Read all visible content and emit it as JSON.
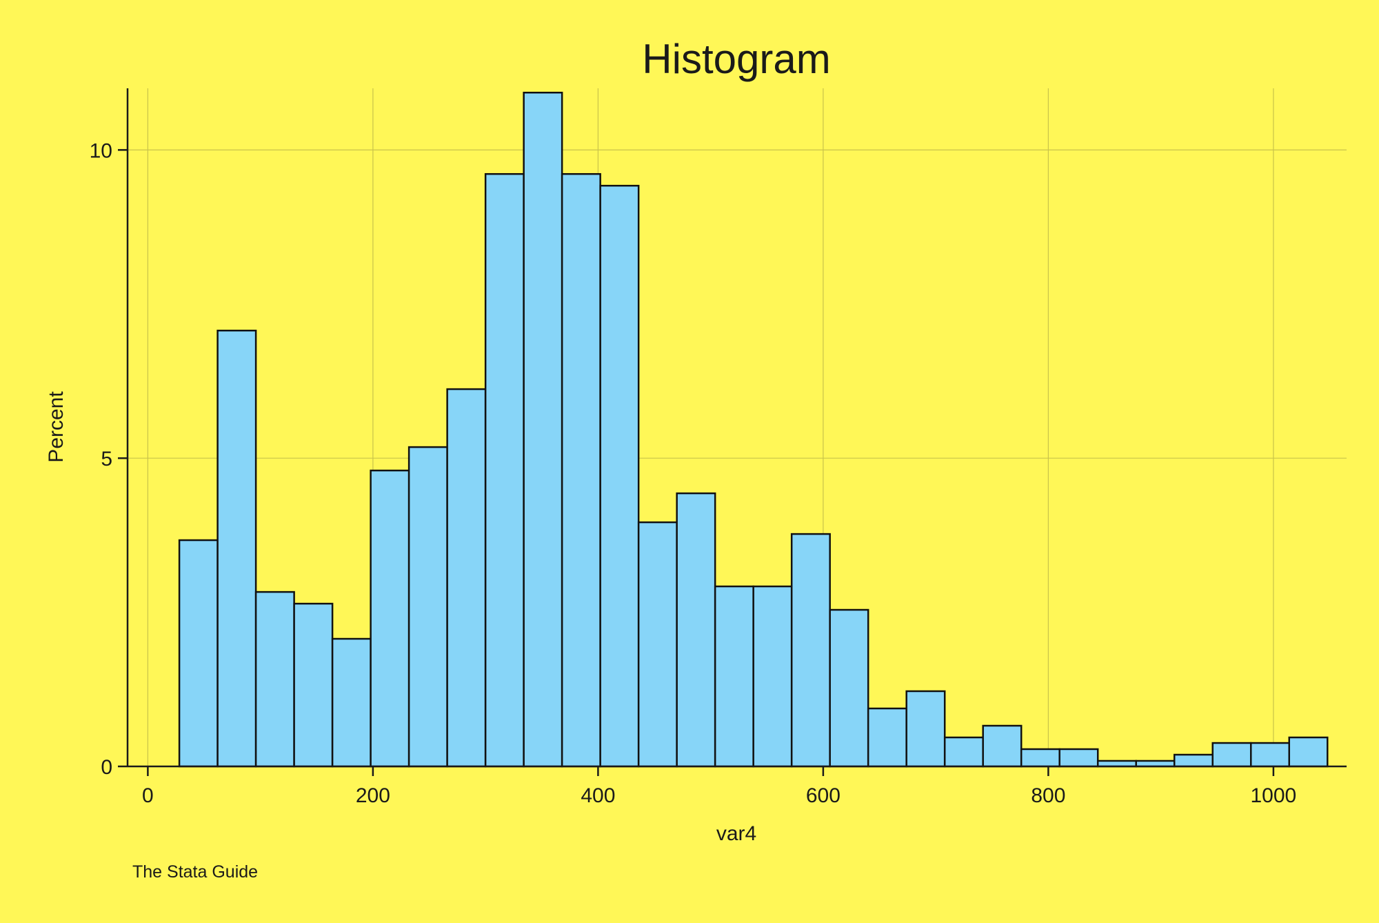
{
  "chart_data": {
    "type": "bar",
    "title": "Histogram",
    "xlabel": "var4",
    "ylabel": "Percent",
    "note": "The Stata Guide",
    "xlim": [
      -18,
      1065
    ],
    "ylim": [
      0,
      11
    ],
    "xticks": [
      0,
      200,
      400,
      600,
      800,
      1000
    ],
    "yticks": [
      0,
      5,
      10
    ],
    "grid": true,
    "bin_width": 34,
    "bins": [
      {
        "start": 28,
        "end": 62,
        "value": 3.67
      },
      {
        "start": 62,
        "end": 96,
        "value": 7.07
      },
      {
        "start": 96,
        "end": 130,
        "value": 2.83
      },
      {
        "start": 130,
        "end": 164,
        "value": 2.64
      },
      {
        "start": 164,
        "end": 198,
        "value": 2.07
      },
      {
        "start": 198,
        "end": 232,
        "value": 4.8
      },
      {
        "start": 232,
        "end": 266,
        "value": 5.18
      },
      {
        "start": 266,
        "end": 300,
        "value": 6.12
      },
      {
        "start": 300,
        "end": 334,
        "value": 9.61
      },
      {
        "start": 334,
        "end": 368,
        "value": 10.93
      },
      {
        "start": 368,
        "end": 402,
        "value": 9.61
      },
      {
        "start": 402,
        "end": 436,
        "value": 9.42
      },
      {
        "start": 436,
        "end": 470,
        "value": 3.96
      },
      {
        "start": 470,
        "end": 504,
        "value": 4.43
      },
      {
        "start": 504,
        "end": 538,
        "value": 2.92
      },
      {
        "start": 538,
        "end": 572,
        "value": 2.92
      },
      {
        "start": 572,
        "end": 606,
        "value": 3.77
      },
      {
        "start": 606,
        "end": 640,
        "value": 2.54
      },
      {
        "start": 640,
        "end": 674,
        "value": 0.94
      },
      {
        "start": 674,
        "end": 708,
        "value": 1.22
      },
      {
        "start": 708,
        "end": 742,
        "value": 0.47
      },
      {
        "start": 742,
        "end": 776,
        "value": 0.66
      },
      {
        "start": 776,
        "end": 810,
        "value": 0.28
      },
      {
        "start": 810,
        "end": 844,
        "value": 0.28
      },
      {
        "start": 844,
        "end": 878,
        "value": 0.09
      },
      {
        "start": 878,
        "end": 912,
        "value": 0.09
      },
      {
        "start": 912,
        "end": 946,
        "value": 0.19
      },
      {
        "start": 946,
        "end": 980,
        "value": 0.38
      },
      {
        "start": 980,
        "end": 1014,
        "value": 0.38
      },
      {
        "start": 1014,
        "end": 1048,
        "value": 0.47
      }
    ],
    "colors": {
      "background": "#fff757",
      "bar_fill": "#87d5f8",
      "bar_outline": "#111111",
      "gridline": "#c9c34a",
      "text": "#1a1a1a"
    }
  }
}
